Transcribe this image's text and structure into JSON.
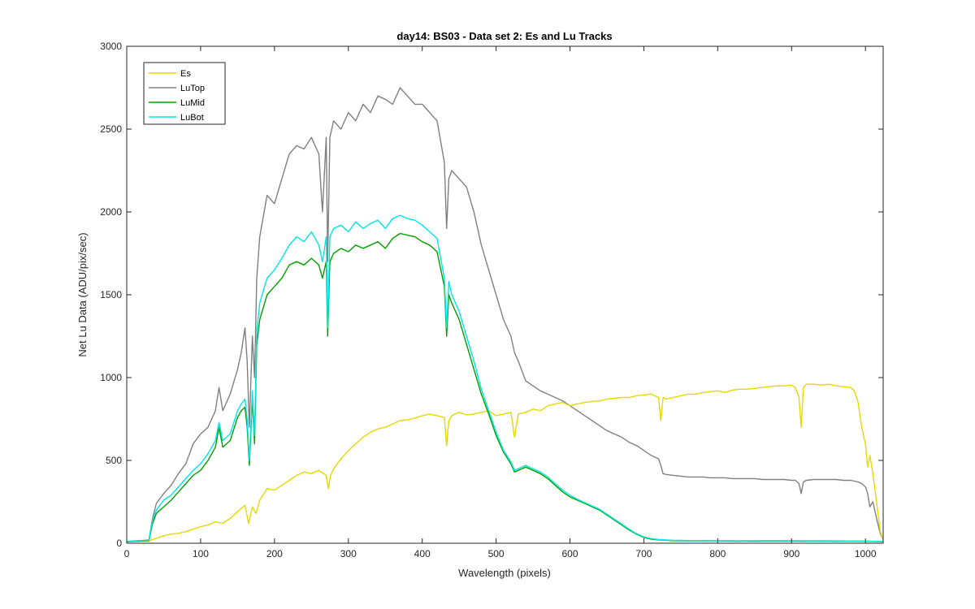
{
  "chart_data": {
    "type": "line",
    "title": "day14: BS03 - Data set 2: Es and Lu Tracks",
    "xlabel": "Wavelength (pixels)",
    "ylabel": "Net Lu Data (ADU/pix/sec)",
    "xlim": [
      0,
      1024
    ],
    "ylim": [
      0,
      3000
    ],
    "xticks": [
      0,
      100,
      200,
      300,
      400,
      500,
      600,
      700,
      800,
      900,
      1000
    ],
    "yticks": [
      0,
      500,
      1000,
      1500,
      2000,
      2500,
      3000
    ],
    "xtick_labels": [
      "0",
      "100",
      "200",
      "300",
      "400",
      "500",
      "600",
      "700",
      "800",
      "900",
      "1000"
    ],
    "ytick_labels": [
      "0",
      "500",
      "1000",
      "1500",
      "2000",
      "2500",
      "3000"
    ],
    "grid": false,
    "legend_position": "top-left",
    "series": [
      {
        "name": "Es",
        "color": "#E6D800",
        "x": [
          0,
          30,
          40,
          50,
          60,
          70,
          80,
          90,
          100,
          110,
          120,
          130,
          140,
          150,
          160,
          165,
          170,
          175,
          180,
          190,
          200,
          210,
          220,
          230,
          240,
          250,
          260,
          270,
          273,
          276,
          280,
          290,
          300,
          310,
          320,
          330,
          340,
          350,
          360,
          370,
          380,
          390,
          400,
          410,
          420,
          430,
          433,
          436,
          440,
          450,
          460,
          470,
          480,
          490,
          500,
          510,
          520,
          525,
          530,
          540,
          550,
          560,
          570,
          580,
          590,
          600,
          610,
          620,
          630,
          640,
          650,
          660,
          670,
          680,
          690,
          700,
          710,
          720,
          723,
          726,
          730,
          740,
          750,
          760,
          770,
          780,
          790,
          800,
          810,
          820,
          830,
          840,
          850,
          860,
          870,
          880,
          890,
          900,
          905,
          910,
          913,
          916,
          920,
          930,
          940,
          950,
          960,
          970,
          980,
          985,
          990,
          995,
          1000,
          1003,
          1006,
          1010,
          1015,
          1020,
          1024
        ],
        "y": [
          10,
          15,
          30,
          45,
          55,
          60,
          70,
          85,
          100,
          110,
          130,
          120,
          150,
          190,
          230,
          120,
          220,
          180,
          260,
          330,
          320,
          350,
          380,
          410,
          430,
          420,
          440,
          410,
          330,
          410,
          450,
          510,
          560,
          600,
          640,
          670,
          690,
          700,
          720,
          740,
          745,
          755,
          770,
          780,
          770,
          760,
          590,
          740,
          770,
          790,
          775,
          780,
          790,
          800,
          770,
          780,
          790,
          640,
          780,
          790,
          810,
          800,
          830,
          840,
          850,
          830,
          840,
          850,
          855,
          860,
          870,
          875,
          880,
          880,
          890,
          895,
          900,
          880,
          740,
          880,
          870,
          880,
          890,
          900,
          900,
          910,
          915,
          920,
          910,
          925,
          930,
          930,
          935,
          940,
          945,
          950,
          950,
          955,
          940,
          880,
          700,
          940,
          960,
          960,
          955,
          960,
          950,
          945,
          940,
          920,
          850,
          700,
          600,
          460,
          530,
          420,
          250,
          70,
          20
        ]
      },
      {
        "name": "LuTop",
        "color": "#808080",
        "x": [
          0,
          30,
          35,
          40,
          50,
          60,
          70,
          80,
          90,
          100,
          110,
          120,
          125,
          130,
          140,
          150,
          155,
          160,
          163,
          166,
          170,
          173,
          176,
          180,
          190,
          200,
          210,
          220,
          230,
          240,
          250,
          260,
          265,
          270,
          272,
          275,
          280,
          290,
          300,
          310,
          320,
          330,
          340,
          350,
          360,
          370,
          380,
          390,
          400,
          410,
          420,
          430,
          433,
          436,
          440,
          450,
          460,
          470,
          480,
          490,
          500,
          510,
          520,
          525,
          530,
          540,
          550,
          560,
          570,
          580,
          590,
          600,
          610,
          620,
          630,
          640,
          650,
          660,
          670,
          680,
          690,
          700,
          710,
          720,
          723,
          726,
          730,
          740,
          750,
          760,
          770,
          780,
          790,
          800,
          810,
          820,
          830,
          840,
          850,
          860,
          870,
          880,
          890,
          900,
          905,
          910,
          913,
          916,
          920,
          930,
          940,
          950,
          960,
          970,
          980,
          990,
          995,
          1000,
          1003,
          1006,
          1010,
          1015,
          1020,
          1024
        ],
        "y": [
          10,
          20,
          150,
          240,
          300,
          350,
          420,
          480,
          600,
          660,
          700,
          800,
          940,
          800,
          900,
          1050,
          1150,
          1300,
          1100,
          700,
          1250,
          1000,
          1600,
          1850,
          2100,
          2050,
          2200,
          2350,
          2400,
          2380,
          2450,
          2350,
          2000,
          2450,
          1700,
          2450,
          2550,
          2500,
          2600,
          2550,
          2650,
          2600,
          2700,
          2680,
          2650,
          2750,
          2700,
          2650,
          2650,
          2600,
          2550,
          2300,
          1900,
          2200,
          2250,
          2200,
          2150,
          2000,
          1800,
          1650,
          1500,
          1350,
          1250,
          1150,
          1100,
          980,
          950,
          920,
          900,
          880,
          860,
          830,
          800,
          770,
          740,
          710,
          680,
          660,
          640,
          610,
          590,
          560,
          530,
          510,
          470,
          420,
          415,
          410,
          405,
          400,
          400,
          400,
          395,
          395,
          395,
          390,
          390,
          390,
          390,
          385,
          385,
          385,
          385,
          380,
          380,
          360,
          300,
          370,
          380,
          385,
          385,
          385,
          385,
          380,
          380,
          370,
          360,
          340,
          300,
          220,
          250,
          150,
          60,
          20
        ]
      },
      {
        "name": "LuMid",
        "color": "#00A000",
        "x": [
          0,
          30,
          35,
          40,
          50,
          60,
          70,
          80,
          90,
          100,
          110,
          120,
          125,
          130,
          140,
          150,
          155,
          160,
          163,
          166,
          170,
          173,
          176,
          180,
          190,
          200,
          210,
          220,
          230,
          240,
          250,
          260,
          265,
          270,
          272,
          275,
          280,
          290,
          300,
          310,
          320,
          330,
          340,
          350,
          360,
          370,
          380,
          390,
          400,
          410,
          420,
          430,
          433,
          436,
          440,
          450,
          460,
          470,
          480,
          490,
          500,
          510,
          520,
          525,
          530,
          540,
          550,
          560,
          570,
          580,
          590,
          600,
          610,
          620,
          630,
          640,
          650,
          660,
          670,
          680,
          690,
          700,
          710,
          720,
          730,
          740,
          750,
          760,
          780,
          800,
          850,
          900,
          950,
          1000,
          1010,
          1020,
          1024
        ],
        "y": [
          10,
          15,
          120,
          180,
          220,
          260,
          310,
          360,
          410,
          440,
          500,
          580,
          700,
          580,
          620,
          760,
          800,
          820,
          700,
          470,
          870,
          600,
          1200,
          1350,
          1500,
          1550,
          1600,
          1680,
          1700,
          1680,
          1720,
          1680,
          1600,
          1700,
          1250,
          1700,
          1750,
          1780,
          1760,
          1800,
          1780,
          1800,
          1820,
          1780,
          1840,
          1870,
          1860,
          1850,
          1820,
          1800,
          1760,
          1550,
          1250,
          1500,
          1450,
          1350,
          1200,
          1050,
          900,
          780,
          650,
          550,
          480,
          430,
          440,
          460,
          440,
          420,
          390,
          350,
          310,
          280,
          260,
          240,
          220,
          200,
          170,
          140,
          110,
          80,
          55,
          35,
          25,
          20,
          18,
          15,
          15,
          14,
          14,
          14,
          13,
          13,
          13,
          12,
          11,
          10,
          10
        ]
      },
      {
        "name": "LuBot",
        "color": "#00E6E6",
        "x": [
          0,
          30,
          35,
          40,
          50,
          60,
          70,
          80,
          90,
          100,
          110,
          120,
          125,
          130,
          140,
          150,
          155,
          160,
          163,
          166,
          170,
          173,
          176,
          180,
          190,
          200,
          210,
          220,
          230,
          240,
          250,
          260,
          265,
          270,
          272,
          275,
          280,
          290,
          300,
          310,
          320,
          330,
          340,
          350,
          360,
          370,
          380,
          390,
          400,
          410,
          420,
          430,
          433,
          436,
          440,
          450,
          460,
          470,
          480,
          490,
          500,
          510,
          520,
          525,
          530,
          540,
          550,
          560,
          570,
          580,
          590,
          600,
          610,
          620,
          630,
          640,
          650,
          660,
          670,
          680,
          690,
          700,
          710,
          720,
          730,
          740,
          750,
          760,
          780,
          800,
          850,
          900,
          950,
          1000,
          1010,
          1020,
          1024
        ],
        "y": [
          12,
          18,
          140,
          200,
          260,
          290,
          340,
          390,
          440,
          480,
          540,
          620,
          730,
          620,
          660,
          800,
          840,
          870,
          750,
          500,
          920,
          650,
          1280,
          1450,
          1600,
          1650,
          1720,
          1800,
          1850,
          1820,
          1880,
          1800,
          1700,
          1850,
          1300,
          1850,
          1900,
          1920,
          1880,
          1940,
          1900,
          1930,
          1950,
          1900,
          1960,
          1980,
          1960,
          1950,
          1920,
          1880,
          1840,
          1600,
          1300,
          1580,
          1500,
          1400,
          1250,
          1100,
          930,
          800,
          670,
          560,
          490,
          440,
          450,
          470,
          450,
          430,
          400,
          360,
          320,
          290,
          265,
          245,
          225,
          205,
          175,
          145,
          115,
          85,
          58,
          38,
          28,
          22,
          20,
          17,
          17,
          16,
          16,
          15,
          15,
          15,
          14,
          13,
          12,
          11,
          10
        ]
      }
    ]
  }
}
